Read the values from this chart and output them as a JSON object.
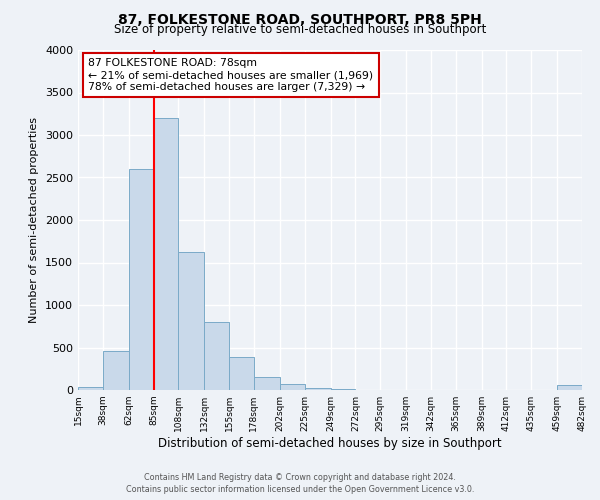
{
  "title": "87, FOLKESTONE ROAD, SOUTHPORT, PR8 5PH",
  "subtitle": "Size of property relative to semi-detached houses in Southport",
  "xlabel": "Distribution of semi-detached houses by size in Southport",
  "ylabel": "Number of semi-detached properties",
  "bin_edges": [
    15,
    38,
    62,
    85,
    108,
    132,
    155,
    178,
    202,
    225,
    249,
    272,
    295,
    319,
    342,
    365,
    389,
    412,
    435,
    459,
    482
  ],
  "bin_heights": [
    30,
    460,
    2600,
    3200,
    1620,
    800,
    390,
    155,
    65,
    25,
    10,
    5,
    3,
    2,
    1,
    2,
    1,
    1,
    1,
    55
  ],
  "bar_color": "#c9d9ea",
  "bar_edge_color": "#7aaac8",
  "red_line_x": 85,
  "annotation_title": "87 FOLKESTONE ROAD: 78sqm",
  "annotation_line1": "← 21% of semi-detached houses are smaller (1,969)",
  "annotation_line2": "78% of semi-detached houses are larger (7,329) →",
  "annotation_box_color": "#ffffff",
  "annotation_box_edge_color": "#cc0000",
  "ylim": [
    0,
    4000
  ],
  "tick_labels": [
    "15sqm",
    "38sqm",
    "62sqm",
    "85sqm",
    "108sqm",
    "132sqm",
    "155sqm",
    "178sqm",
    "202sqm",
    "225sqm",
    "249sqm",
    "272sqm",
    "295sqm",
    "319sqm",
    "342sqm",
    "365sqm",
    "389sqm",
    "412sqm",
    "435sqm",
    "459sqm",
    "482sqm"
  ],
  "footer_line1": "Contains HM Land Registry data © Crown copyright and database right 2024.",
  "footer_line2": "Contains public sector information licensed under the Open Government Licence v3.0.",
  "background_color": "#eef2f7",
  "grid_color": "#ffffff",
  "yticks": [
    0,
    500,
    1000,
    1500,
    2000,
    2500,
    3000,
    3500,
    4000
  ]
}
